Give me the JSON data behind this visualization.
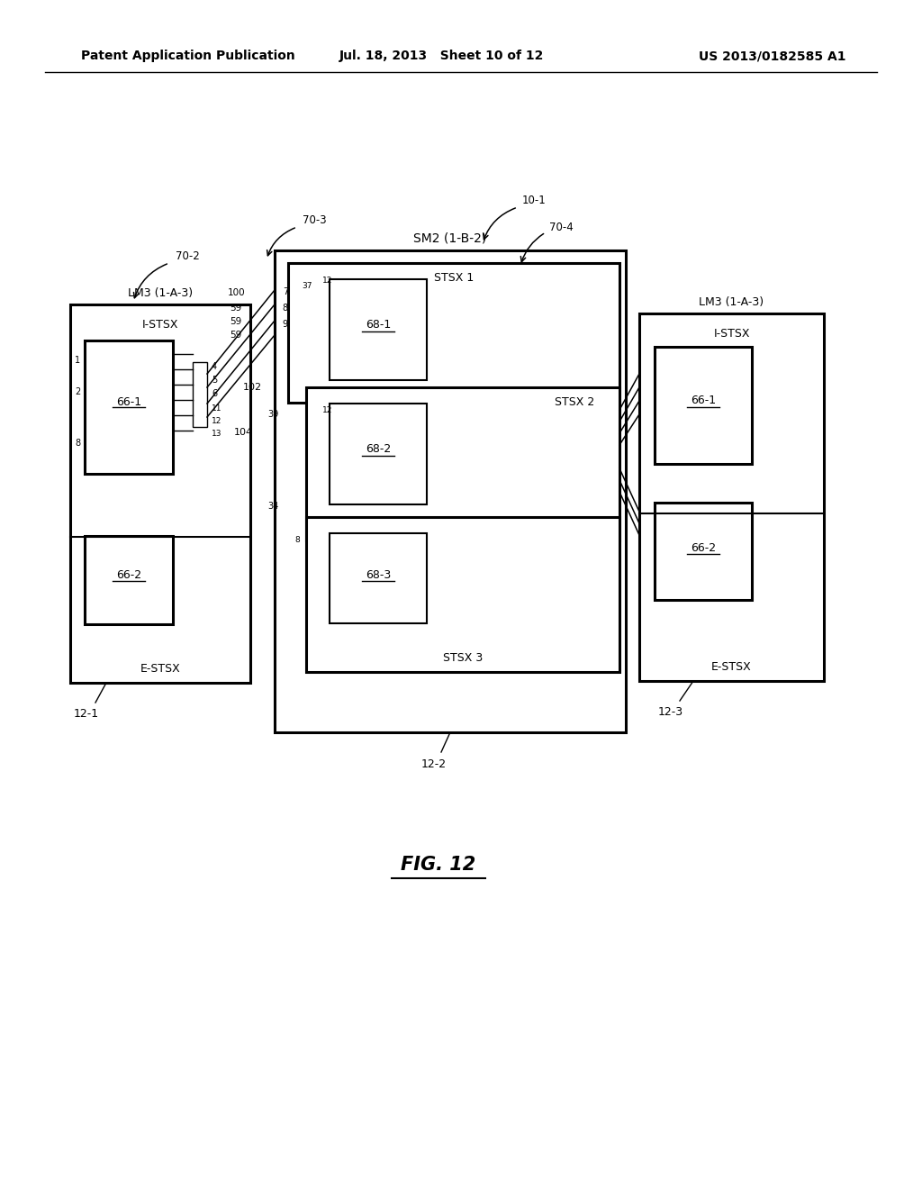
{
  "bg": "#ffffff",
  "header_left": "Patent Application Publication",
  "header_mid": "Jul. 18, 2013   Sheet 10 of 12",
  "header_right": "US 2013/0182585 A1",
  "fig_caption": "FIG. 12",
  "lm3_left_label": "LM3 (1-A-3)",
  "lm3_right_label": "LM3 (1-A-3)",
  "sm2_label": "SM2 (1-B-2)",
  "i_stsx": "I-STSX",
  "e_stsx": "E-STSX",
  "stsx1": "STSX 1",
  "stsx2": "STSX 2",
  "stsx3": "STSX 3",
  "id_68_1": "68-1",
  "id_68_2": "68-2",
  "id_68_3": "68-3",
  "id_66_1": "66-1",
  "id_66_2": "66-2",
  "id_12_1": "12-1",
  "id_12_2": "12-2",
  "id_12_3": "12-3",
  "label_100": "100",
  "label_59a": "59",
  "label_59b": "59",
  "label_59c": "59",
  "label_102": "102",
  "label_104": "104",
  "label_70_2": "70-2",
  "label_70_3": "70-3",
  "label_10_1": "10-1",
  "label_70_4": "70-4",
  "lw_thick": 2.2,
  "lw_med": 1.5,
  "lw_thin": 1.0,
  "lw_conn": 1.1
}
